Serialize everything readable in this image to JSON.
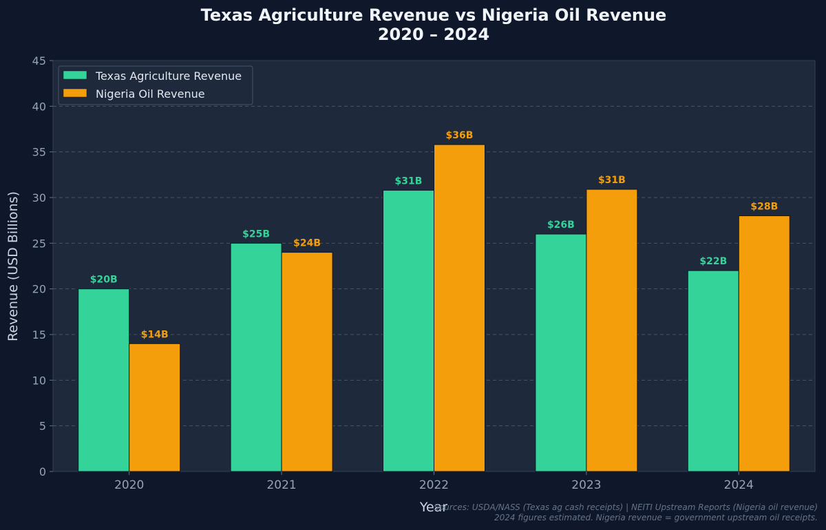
{
  "chart_data": {
    "type": "bar",
    "title": "Texas Agriculture Revenue vs Nigeria Oil Revenue",
    "subtitle": "2020 – 2024",
    "xlabel": "Year",
    "ylabel": "Revenue (USD Billions)",
    "categories": [
      "2020",
      "2021",
      "2022",
      "2023",
      "2024"
    ],
    "ylim": [
      0,
      45
    ],
    "yticks": [
      0,
      5,
      10,
      15,
      20,
      25,
      30,
      35,
      40,
      45
    ],
    "grid": true,
    "legend_position": "top-left",
    "series": [
      {
        "name": "Texas Agriculture Revenue",
        "color": "#34d399",
        "values": [
          20,
          25,
          30.8,
          26,
          22
        ],
        "labels": [
          "$20B",
          "$25B",
          "$31B",
          "$26B",
          "$22B"
        ]
      },
      {
        "name": "Nigeria Oil Revenue",
        "color": "#f59e0b",
        "values": [
          14,
          24,
          35.8,
          30.9,
          28
        ],
        "labels": [
          "$14B",
          "$24B",
          "$36B",
          "$31B",
          "$28B"
        ]
      }
    ],
    "footnote_lines": [
      "Sources: USDA/NASS (Texas ag cash receipts) | NEITI Upstream Reports (Nigeria oil revenue)",
      "2024 figures estimated. Nigeria revenue = government upstream oil receipts."
    ]
  }
}
